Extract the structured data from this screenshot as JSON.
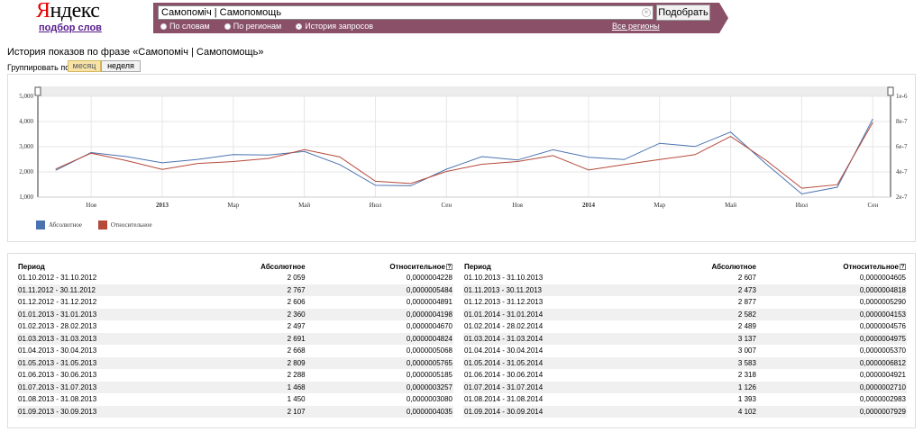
{
  "header": {
    "logo_first": "Я",
    "logo_rest": "ндекс",
    "logo_sub": "подбор слов",
    "search_value": "Самопоміч | Самопомощь",
    "search_button": "Подобрать",
    "radios": [
      {
        "label": "По словам",
        "selected": false
      },
      {
        "label": "По регионам",
        "selected": false
      },
      {
        "label": "История запросов",
        "selected": true
      }
    ],
    "all_regions": "Все регионы"
  },
  "page": {
    "history_title": "История показов по фразе «Самопоміч | Самопомощь»",
    "group_label": "Группировать по:",
    "group_month": "месяц",
    "group_week": "неделя"
  },
  "chart_data": {
    "type": "line",
    "periods": [
      "2012-10",
      "2012-11",
      "2012-12",
      "2013-01",
      "2013-02",
      "2013-03",
      "2013-04",
      "2013-05",
      "2013-06",
      "2013-07",
      "2013-08",
      "2013-09",
      "2013-10",
      "2013-11",
      "2013-12",
      "2014-01",
      "2014-02",
      "2014-03",
      "2014-04",
      "2014-05",
      "2014-06",
      "2014-07",
      "2014-08",
      "2014-09"
    ],
    "x_tick_labels": [
      "Ноя",
      "2013",
      "Мар",
      "Май",
      "Июл",
      "Сен",
      "Ноя",
      "2014",
      "Мар",
      "Май",
      "Июл",
      "Сен"
    ],
    "y_left_ticks": [
      "1,000",
      "2,000",
      "3,000",
      "4,000",
      "5,000"
    ],
    "y_right_ticks": [
      "2e-7",
      "4e-7",
      "6e-7",
      "8e-7",
      "1e-6"
    ],
    "ylim_left": [
      1000,
      5000
    ],
    "ylim_right": [
      2e-07,
      1e-06
    ],
    "series": [
      {
        "name": "Абсолютное",
        "color": "#4a72b0",
        "axis": "left",
        "values": [
          2059,
          2767,
          2606,
          2360,
          2497,
          2691,
          2668,
          2809,
          2288,
          1468,
          1450,
          2107,
          2607,
          2473,
          2877,
          2582,
          2489,
          3137,
          3007,
          3583,
          2318,
          1126,
          1393,
          4102
        ]
      },
      {
        "name": "Относительное",
        "color": "#b5493a",
        "axis": "right",
        "values": [
          4.228e-07,
          5.484e-07,
          4.891e-07,
          4.198e-07,
          4.67e-07,
          4.824e-07,
          5.068e-07,
          5.765e-07,
          5.185e-07,
          3.257e-07,
          3.08e-07,
          4.035e-07,
          4.605e-07,
          4.818e-07,
          5.29e-07,
          4.153e-07,
          4.576e-07,
          4.975e-07,
          5.37e-07,
          6.812e-07,
          4.921e-07,
          2.71e-07,
          2.983e-07,
          7.929e-07
        ]
      }
    ]
  },
  "table": {
    "headers": {
      "period": "Период",
      "absolute": "Абсолютное",
      "relative": "Относительное",
      "help": "?"
    },
    "left_rows": [
      {
        "period": "01.10.2012 - 31.10.2012",
        "absolute": "2 059",
        "relative": "0,0000004228"
      },
      {
        "period": "01.11.2012 - 30.11.2012",
        "absolute": "2 767",
        "relative": "0,0000005484"
      },
      {
        "period": "01.12.2012 - 31.12.2012",
        "absolute": "2 606",
        "relative": "0,0000004891"
      },
      {
        "period": "01.01.2013 - 31.01.2013",
        "absolute": "2 360",
        "relative": "0,0000004198"
      },
      {
        "period": "01.02.2013 - 28.02.2013",
        "absolute": "2 497",
        "relative": "0,0000004670"
      },
      {
        "period": "01.03.2013 - 31.03.2013",
        "absolute": "2 691",
        "relative": "0,0000004824"
      },
      {
        "period": "01.04.2013 - 30.04.2013",
        "absolute": "2 668",
        "relative": "0,0000005068"
      },
      {
        "period": "01.05.2013 - 31.05.2013",
        "absolute": "2 809",
        "relative": "0,0000005765"
      },
      {
        "period": "01.06.2013 - 30.06.2013",
        "absolute": "2 288",
        "relative": "0,0000005185"
      },
      {
        "period": "01.07.2013 - 31.07.2013",
        "absolute": "1 468",
        "relative": "0,0000003257"
      },
      {
        "period": "01.08.2013 - 31.08.2013",
        "absolute": "1 450",
        "relative": "0,0000003080"
      },
      {
        "period": "01.09.2013 - 30.09.2013",
        "absolute": "2 107",
        "relative": "0,0000004035"
      }
    ],
    "right_rows": [
      {
        "period": "01.10.2013 - 31.10.2013",
        "absolute": "2 607",
        "relative": "0,0000004605"
      },
      {
        "period": "01.11.2013 - 30.11.2013",
        "absolute": "2 473",
        "relative": "0,0000004818"
      },
      {
        "period": "01.12.2013 - 31.12.2013",
        "absolute": "2 877",
        "relative": "0,0000005290"
      },
      {
        "period": "01.01.2014 - 31.01.2014",
        "absolute": "2 582",
        "relative": "0,0000004153"
      },
      {
        "period": "01.02.2014 - 28.02.2014",
        "absolute": "2 489",
        "relative": "0,0000004576"
      },
      {
        "period": "01.03.2014 - 31.03.2014",
        "absolute": "3 137",
        "relative": "0,0000004975"
      },
      {
        "period": "01.04.2014 - 30.04.2014",
        "absolute": "3 007",
        "relative": "0,0000005370"
      },
      {
        "period": "01.05.2014 - 31.05.2014",
        "absolute": "3 583",
        "relative": "0,0000006812"
      },
      {
        "period": "01.06.2014 - 30.06.2014",
        "absolute": "2 318",
        "relative": "0,0000004921"
      },
      {
        "period": "01.07.2014 - 31.07.2014",
        "absolute": "1 126",
        "relative": "0,0000002710"
      },
      {
        "period": "01.08.2014 - 31.08.2014",
        "absolute": "1 393",
        "relative": "0,0000002983"
      },
      {
        "period": "01.09.2014 - 30.09.2014",
        "absolute": "4 102",
        "relative": "0,0000007929"
      }
    ]
  }
}
